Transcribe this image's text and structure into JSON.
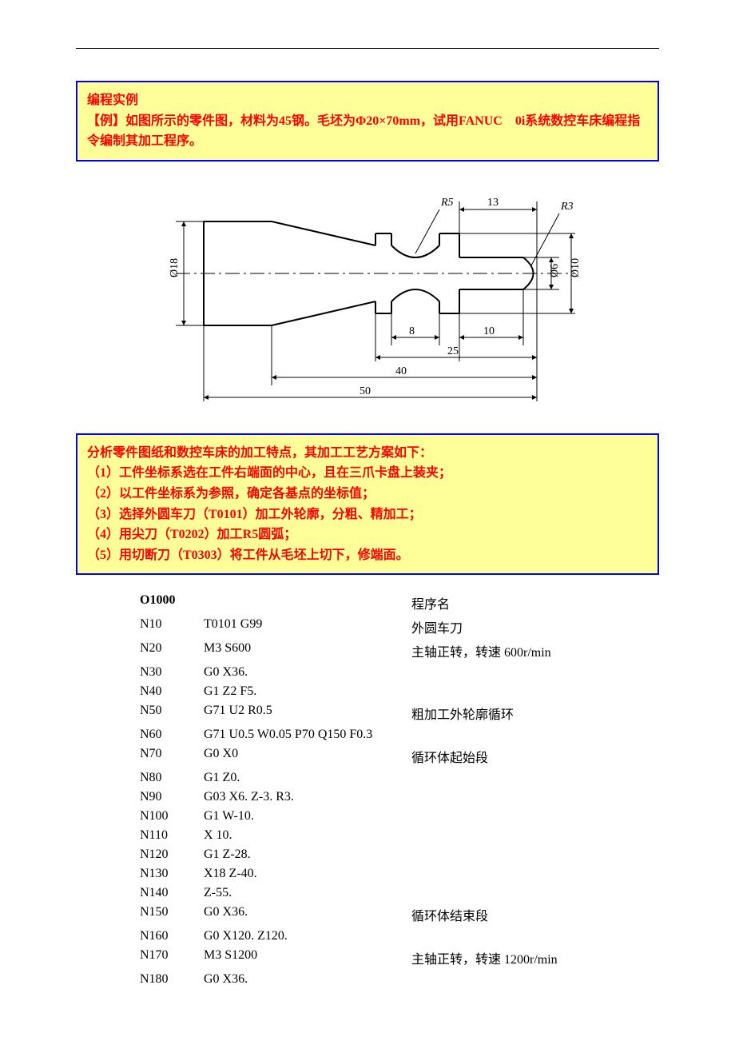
{
  "box1": {
    "line1": "编程实例",
    "line2": "【例】如图所示的零件图，材料为45钢。毛坯为Φ20×70mm，试用FANUC　0i系统数控车床编程指令编制其加工程序。"
  },
  "diagram": {
    "labels": {
      "d18": "Ø18",
      "d10": "Ø10",
      "d6": "Ø6",
      "r5": "R5",
      "r3": "R3",
      "w13": "13",
      "w10": "10",
      "w8": "8",
      "w25": "25",
      "w40": "40",
      "w50": "50"
    },
    "stroke": "#000000",
    "thin": 1,
    "thick": 2
  },
  "box2": {
    "line0": "分析零件图纸和数控车床的加工特点，其加工工艺方案如下：",
    "line1": "（1）工件坐标系选在工件右端面的中心，且在三爪卡盘上装夹；",
    "line2": "（2）以工件坐标系为参照，确定各基点的坐标值；",
    "line3": "（3）选择外圆车刀（T0101）加工外轮廓，分粗、精加工；",
    "line4": "（4）用尖刀（T0202）加工R5圆弧；",
    "line5": "（5）用切断刀（T0303）将工件从毛坯上切下，修端面。"
  },
  "code": [
    {
      "c1": "O1000",
      "c2": "",
      "c3": "程序名",
      "bold": true
    },
    {
      "c1": "N10",
      "c2": "T0101 G99",
      "c3": "外圆车刀"
    },
    {
      "c1": "N20",
      "c2": "M3 S600",
      "c3": "主轴正转，转速 600r/min"
    },
    {
      "c1": "N30",
      "c2": "G0 X36.",
      "c3": ""
    },
    {
      "c1": "N40",
      "c2": "G1 Z2 F5.",
      "c3": ""
    },
    {
      "c1": "N50",
      "c2": "G71 U2 R0.5",
      "c3": "粗加工外轮廓循环"
    },
    {
      "c1": "N60",
      "c2": "G71 U0.5 W0.05 P70 Q150 F0.3",
      "c3": ""
    },
    {
      "c1": "N70",
      "c2": "G0 X0",
      "c3": "循环体起始段"
    },
    {
      "c1": "N80",
      "c2": "G1 Z0.",
      "c3": ""
    },
    {
      "c1": "N90",
      "c2": "G03 X6. Z-3. R3.",
      "c3": ""
    },
    {
      "c1": "N100",
      "c2": "G1 W-10.",
      "c3": ""
    },
    {
      "c1": "N110",
      "c2": "X 10.",
      "c3": ""
    },
    {
      "c1": "N120",
      "c2": "G1 Z-28.",
      "c3": ""
    },
    {
      "c1": "N130",
      "c2": "X18 Z-40.",
      "c3": ""
    },
    {
      "c1": "N140",
      "c2": "Z-55.",
      "c3": ""
    },
    {
      "c1": "N150",
      "c2": "G0 X36.",
      "c3": "循环体结束段"
    },
    {
      "c1": "N160",
      "c2": "G0 X120. Z120.",
      "c3": ""
    },
    {
      "c1": "N170",
      "c2": "M3 S1200",
      "c3": "主轴正转，转速 1200r/min"
    },
    {
      "c1": "N180",
      "c2": "G0 X36.",
      "c3": ""
    }
  ]
}
